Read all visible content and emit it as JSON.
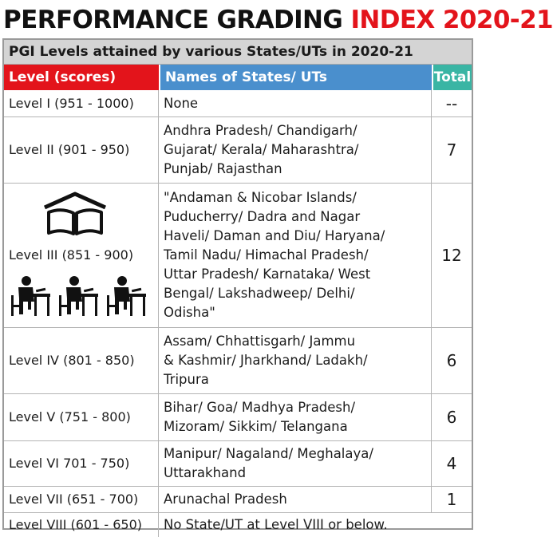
{
  "title": {
    "part1": "PERFORMANCE GRADING ",
    "part2": "INDEX 2020-21"
  },
  "subtitle": "PGI Levels attained by various States/UTs in 2020-21",
  "headers": {
    "level": "Level (scores)",
    "names": "Names of States/ UTs",
    "total": "Total"
  },
  "rows": [
    {
      "level": "Level I (951 - 1000)",
      "names": "None",
      "total": "--"
    },
    {
      "level": "Level II (901 - 950)",
      "names": "Andhra Pradesh/ Chandigarh/\nGujarat/ Kerala/ Maharashtra/\nPunjab/ Rajasthan",
      "total": "7"
    },
    {
      "level": "Level III (851 - 900)",
      "names": "\"Andaman & Nicobar Islands/\nPuducherry/ Dadra and Nagar\nHaveli/ Daman and Diu/ Haryana/\nTamil Nadu/ Himachal Pradesh/\nUttar Pradesh/ Karnataka/ West\nBengal/ Lakshadweep/ Delhi/\nOdisha\"",
      "total": "12"
    },
    {
      "level": "Level IV (801 - 850)",
      "names": "Assam/ Chhattisgarh/ Jammu\n& Kashmir/ Jharkhand/ Ladakh/\nTripura",
      "total": "6"
    },
    {
      "level": "Level V (751 - 800)",
      "names": "Bihar/ Goa/ Madhya Pradesh/\nMizoram/ Sikkim/ Telangana",
      "total": "6"
    },
    {
      "level": "Level VI 701 - 750)",
      "names": "Manipur/ Nagaland/ Meghalaya/\nUttarakhand",
      "total": "4"
    },
    {
      "level": "Level VII (651 - 700)",
      "names": "Arunachal Pradesh",
      "total": "1"
    },
    {
      "level": "Level VIII (601 - 650)",
      "names": "No State/UT at Level VIII or below.",
      "total": ""
    }
  ],
  "icons": {
    "book": "open-book-icon",
    "students": "students-at-desks-icon"
  },
  "colors": {
    "title_red": "#e3141b",
    "level_header": "#e3141b",
    "names_header": "#4a8fcd",
    "total_header": "#3ab5a4",
    "subtitle_bg": "#d4d4d4"
  }
}
